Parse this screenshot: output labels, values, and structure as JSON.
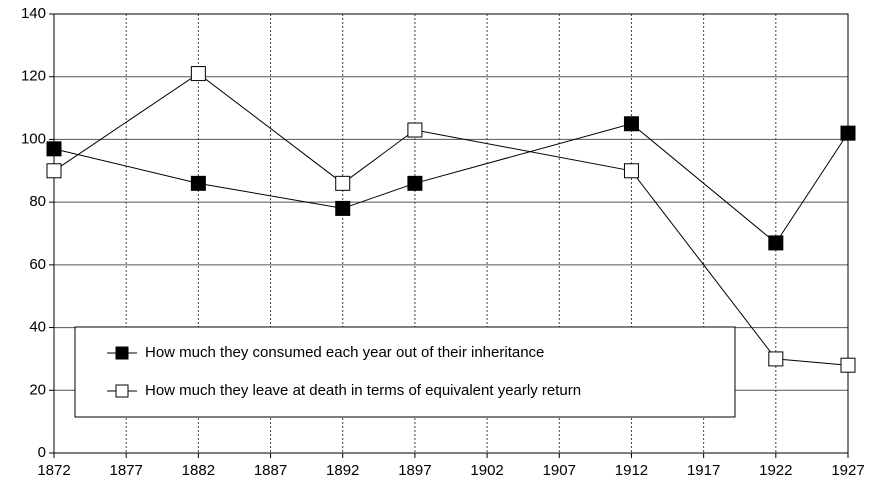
{
  "chart_data": {
    "type": "line",
    "x": [
      1872,
      1882,
      1892,
      1897,
      1912,
      1922,
      1927
    ],
    "series": [
      {
        "name": "How much they consumed each year out of their inheritance",
        "color": "#000000",
        "values": [
          97,
          86,
          78,
          86,
          105,
          67,
          102
        ]
      },
      {
        "name": "How much they leave at death in terms of equivalent yearly return",
        "color": "#ffffff",
        "values": [
          90,
          121,
          86,
          103,
          90,
          30,
          28
        ]
      }
    ],
    "xlim": [
      1872,
      1927
    ],
    "xticks": [
      1872,
      1877,
      1882,
      1887,
      1892,
      1897,
      1902,
      1907,
      1912,
      1917,
      1922,
      1927
    ],
    "ylim": [
      0,
      140
    ],
    "yticks": [
      0,
      20,
      40,
      60,
      80,
      100,
      120,
      140
    ],
    "grid": true,
    "legend": "lower left"
  }
}
